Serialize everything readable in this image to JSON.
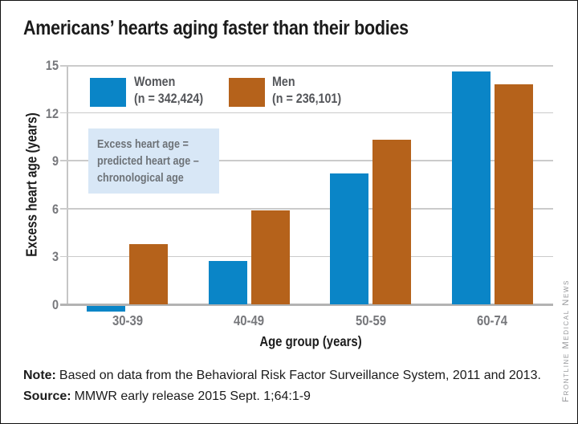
{
  "title": "Americans’ hearts aging faster than their bodies",
  "legend": [
    {
      "label": "Women",
      "sub": "(n = 342,424)",
      "color": "#0a85c7"
    },
    {
      "label": "Men",
      "sub": "(n = 236,101)",
      "color": "#b5621b"
    }
  ],
  "annotation": {
    "bg": "#d8e7f6",
    "lines": [
      "Excess heart age =",
      "predicted heart age –",
      "chronological age"
    ]
  },
  "notes": {
    "note_label": "Note:",
    "note_body": "Based on data from the Behavioral Risk Factor Surveillance System, 2011 and 2013.",
    "source_label": "Source:",
    "source_body": "MMWR early release 2015 Sept. 1;64:1-9"
  },
  "credit": "Frontline Medical News",
  "chart_data": {
    "type": "bar",
    "title": "Americans’ hearts aging faster than their bodies",
    "categories": [
      "30-39",
      "40-49",
      "50-59",
      "60-74"
    ],
    "series": [
      {
        "name": "Women (n = 342,424)",
        "color": "#0a85c7",
        "values": [
          -0.4,
          2.7,
          8.2,
          14.6
        ]
      },
      {
        "name": "Men (n = 236,101)",
        "color": "#b5621b",
        "values": [
          3.8,
          5.9,
          10.3,
          13.8
        ]
      }
    ],
    "xlabel": "Age group (years)",
    "ylabel": "Excess heart age (years)",
    "ylim": [
      0,
      15
    ],
    "yticks": [
      0,
      3,
      6,
      9,
      12,
      15
    ],
    "grid": true,
    "legend_position": "top-left-inside",
    "annotation_text": "Excess heart age = predicted heart age – chronological age"
  }
}
